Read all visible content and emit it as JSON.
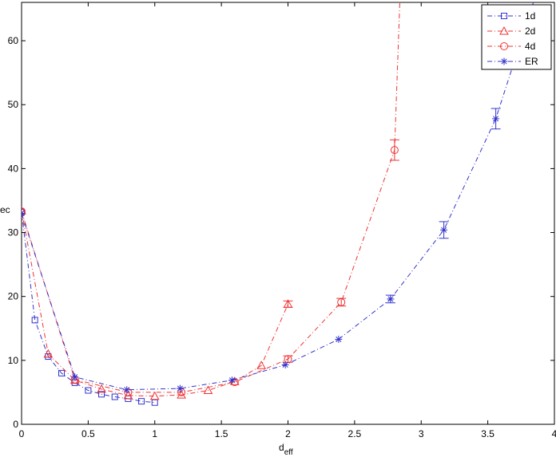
{
  "chart_data": {
    "type": "line",
    "xlabel": "d",
    "xlabel_sub": "eff",
    "ylabel": "ec",
    "xlim": [
      0,
      4
    ],
    "ylim": [
      0,
      66
    ],
    "xticks": [
      0,
      0.5,
      1,
      1.5,
      2,
      2.5,
      3,
      3.5,
      4
    ],
    "xtick_labels": [
      "0",
      "0.5",
      "1",
      "1.5",
      "2",
      "2.5",
      "3",
      "3.5",
      "4"
    ],
    "yticks": [
      0,
      10,
      20,
      30,
      40,
      50,
      60
    ],
    "ytick_labels": [
      "0",
      "10",
      "20",
      "30",
      "40",
      "50",
      "60"
    ],
    "grid": false,
    "legend_position": "top-right",
    "series": [
      {
        "name": "1d",
        "color": "#3333cc",
        "marker": "square",
        "x": [
          0,
          0.1,
          0.2,
          0.3,
          0.4,
          0.5,
          0.6,
          0.7,
          0.8,
          0.9,
          1.0
        ],
        "y": [
          33.2,
          16.3,
          10.6,
          8.0,
          6.5,
          5.3,
          4.7,
          4.3,
          4.0,
          3.6,
          3.4
        ],
        "err": [
          0,
          0,
          0,
          0,
          0,
          0,
          0,
          0,
          0,
          0,
          0
        ]
      },
      {
        "name": "2d",
        "color": "#ee3333",
        "marker": "triangle",
        "x": [
          0,
          0.2,
          0.4,
          0.6,
          0.8,
          1.0,
          1.2,
          1.4,
          1.6,
          1.8,
          2.0
        ],
        "y": [
          33.4,
          11.0,
          6.9,
          5.5,
          4.5,
          4.4,
          4.6,
          5.3,
          6.7,
          9.2,
          18.8
        ],
        "err": [
          0,
          0,
          0,
          0,
          0,
          0,
          0,
          0,
          0,
          0,
          0.5
        ]
      },
      {
        "name": "4d",
        "color": "#ee3333",
        "marker": "circle",
        "x": [
          0,
          0.4,
          0.8,
          1.2,
          1.6,
          2.0,
          2.4,
          2.8,
          2.84
        ],
        "y": [
          33.3,
          7.0,
          5.0,
          5.0,
          6.6,
          10.2,
          19.1,
          42.9,
          66.5
        ],
        "err": [
          0,
          0,
          0,
          0,
          0,
          0.5,
          0.6,
          1.6,
          0
        ],
        "marker_mask": [
          1,
          1,
          1,
          1,
          1,
          1,
          1,
          1,
          0
        ]
      },
      {
        "name": "ER",
        "color": "#3333cc",
        "marker": "star",
        "x": [
          0,
          0.4,
          0.79,
          1.19,
          1.58,
          1.98,
          2.38,
          2.77,
          3.17,
          3.56,
          3.85
        ],
        "y": [
          33.0,
          7.4,
          5.4,
          5.6,
          6.9,
          9.3,
          13.3,
          19.6,
          30.4,
          47.8,
          66.5
        ],
        "err": [
          0,
          0,
          0,
          0,
          0,
          0,
          0,
          0.6,
          1.3,
          1.6,
          0
        ],
        "marker_mask": [
          1,
          1,
          1,
          1,
          1,
          1,
          1,
          1,
          1,
          1,
          0
        ]
      }
    ]
  }
}
